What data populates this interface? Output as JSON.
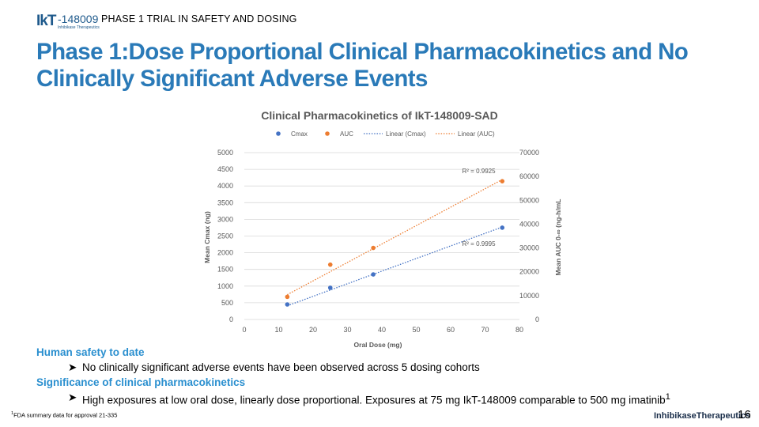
{
  "logo": {
    "ik": "IkT",
    "num": "-148009",
    "sub": "Inhibikase Therapeutics"
  },
  "section": "PHASE 1 TRIAL IN SAFETY AND DOSING",
  "title": "Phase 1:Dose Proportional Clinical Pharmacokinetics and No Clinically Significant Adverse Events",
  "chart_data": {
    "type": "scatter",
    "title": "Clinical Pharmacokinetics of IkT-148009-SAD",
    "xlabel": "Oral Dose (mg)",
    "ylabel": "Mean Cmax (ng)",
    "y2label": "Mean AUC 0-∞ (ng-h/mL",
    "xlim": [
      0,
      80
    ],
    "ylim": [
      0,
      5000
    ],
    "y2lim": [
      0,
      70000
    ],
    "xticks": [
      "0",
      "10",
      "20",
      "30",
      "40",
      "50",
      "60",
      "70",
      "80"
    ],
    "yticks": [
      "0",
      "500",
      "1000",
      "1500",
      "2000",
      "2500",
      "3000",
      "3500",
      "4000",
      "4500",
      "5000"
    ],
    "y2ticks": [
      "0",
      "10000",
      "20000",
      "30000",
      "40000",
      "50000",
      "60000",
      "70000"
    ],
    "legend_position": "top",
    "legend": [
      "Cmax",
      "AUC",
      "Linear (Cmax)",
      "Linear (AUC)"
    ],
    "series": [
      {
        "name": "Cmax",
        "axis": "left",
        "color": "#4472c4",
        "x": [
          12.5,
          25,
          37.5,
          75
        ],
        "y": [
          450,
          950,
          1350,
          2750
        ]
      },
      {
        "name": "AUC",
        "axis": "right",
        "color": "#ed7d31",
        "x": [
          12.5,
          25,
          37.5,
          75
        ],
        "y": [
          9500,
          23000,
          30000,
          58000
        ]
      }
    ],
    "trendlines": [
      {
        "name": "Linear (Cmax)",
        "axis": "left",
        "color": "#4472c4",
        "x": [
          12.5,
          75
        ],
        "y": [
          410,
          2770
        ],
        "r2": "R² = 0.9995"
      },
      {
        "name": "Linear (AUC)",
        "axis": "right",
        "color": "#ed7d31",
        "x": [
          12.5,
          75
        ],
        "y": [
          10400,
          58700
        ],
        "r2": "R² = 0.9925"
      }
    ],
    "grid": true
  },
  "bullets": [
    {
      "head": "Human safety to date",
      "text": "No clinically significant adverse events have been observed across 5 dosing cohorts"
    },
    {
      "head": "Significance of clinical pharmacokinetics",
      "text": "High exposures at low oral dose, linearly dose proportional.  Exposures at 75 mg IkT-148009 comparable to 500 mg imatinib",
      "sup": "1"
    }
  ],
  "footnote": {
    "sup": "1",
    "text": "FDA summary data for approval 21-335"
  },
  "brand": "InhibikaseTherapeutics",
  "page_number": "16"
}
